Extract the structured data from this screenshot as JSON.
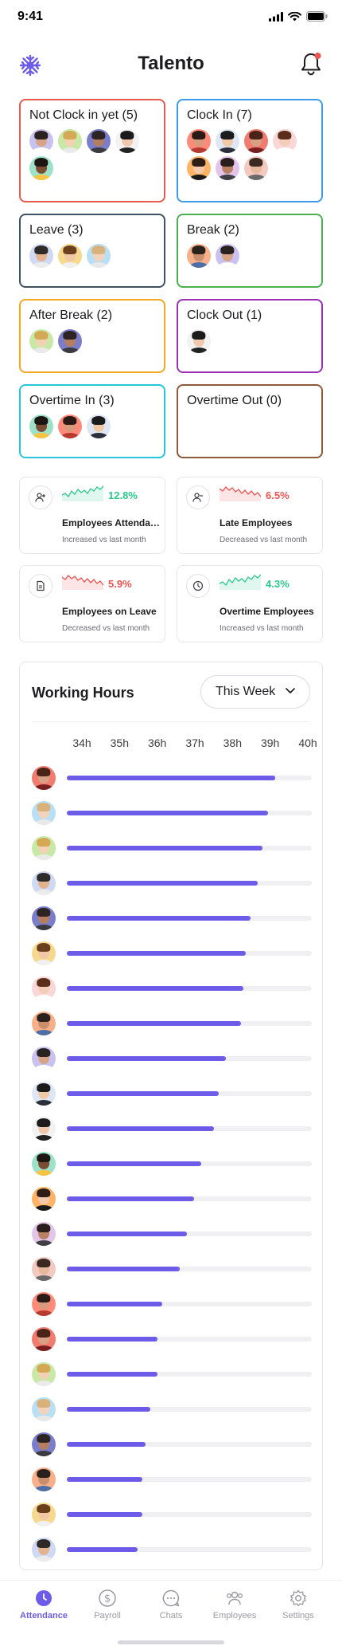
{
  "status_bar": {
    "time": "9:41"
  },
  "header": {
    "title": "Talento"
  },
  "colors": {
    "accent": "#6c5ce7",
    "up": "#2ac98a",
    "down": "#ef5350",
    "not_clock_in": "#e85a4f",
    "clock_in": "#3d9be9",
    "leave": "#3e5266",
    "break": "#4caf50",
    "after_break": "#f5a623",
    "clock_out": "#9b30b5",
    "overtime_in": "#26c6da",
    "overtime_out": "#8d5a3c"
  },
  "status_cards": [
    {
      "title": "Not Clock in yet (5)",
      "color": "#e85a4f",
      "avatars": [
        5,
        6,
        7,
        8,
        9
      ]
    },
    {
      "title": "Clock In (7)",
      "color": "#3d9be9",
      "avatars": [
        10,
        11,
        12,
        13,
        14,
        15,
        16
      ]
    },
    {
      "title": "Leave (3)",
      "color": "#3e5266",
      "avatars": [
        1,
        2,
        3
      ]
    },
    {
      "title": "Break (2)",
      "color": "#4caf50",
      "avatars": [
        4,
        5
      ]
    },
    {
      "title": "After Break (2)",
      "color": "#f5a623",
      "avatars": [
        6,
        7
      ]
    },
    {
      "title": "Clock Out (1)",
      "color": "#9b30b5",
      "avatars": [
        8
      ]
    },
    {
      "title": "Overtime In (3)",
      "color": "#26c6da",
      "avatars": [
        9,
        10,
        11
      ]
    },
    {
      "title": "Overtime Out (0)",
      "color": "#8d5a3c",
      "avatars": []
    }
  ],
  "stats": [
    {
      "icon": "user-plus-icon",
      "percent": "12.8%",
      "trend": "up",
      "label": "Employees Attendance",
      "sub": "Increased vs last month"
    },
    {
      "icon": "user-minus-icon",
      "percent": "6.5%",
      "trend": "down",
      "label": "Late Employees",
      "sub": "Decreased vs last month"
    },
    {
      "icon": "document-icon",
      "percent": "5.9%",
      "trend": "down",
      "label": "Employees on Leave",
      "sub": "Decreased vs last month"
    },
    {
      "icon": "clock-icon",
      "percent": "4.3%",
      "trend": "up",
      "label": "Overtime Employees",
      "sub": "Increased vs last month"
    }
  ],
  "working_hours": {
    "title": "Working Hours",
    "period": "This Week",
    "ticks": [
      "34h",
      "35h",
      "36h",
      "37h",
      "38h",
      "39h",
      "40h"
    ],
    "progress": [
      0.85,
      0.82,
      0.8,
      0.78,
      0.75,
      0.73,
      0.72,
      0.71,
      0.65,
      0.62,
      0.6,
      0.55,
      0.52,
      0.49,
      0.46,
      0.39,
      0.37,
      0.37,
      0.34,
      0.32,
      0.31,
      0.31,
      0.29
    ],
    "avatars": [
      12,
      3,
      6,
      1,
      7,
      2,
      13,
      4,
      5,
      11,
      8,
      9,
      14,
      15,
      0,
      10,
      12,
      6,
      3,
      7,
      4,
      2,
      1
    ]
  },
  "avatar_palette": [
    {
      "bg": "#f3c9c2",
      "skin": "#e8b89a",
      "hair": "#3a2a22",
      "shirt": "#6a6a6a"
    },
    {
      "bg": "#cfd9f2",
      "skin": "#e3b38f",
      "hair": "#2e2a28",
      "shirt": "#ececec"
    },
    {
      "bg": "#f6d98e",
      "skin": "#f0c8a6",
      "hair": "#6b3e1e",
      "shirt": "#f0f0f0"
    },
    {
      "bg": "#b9dff5",
      "skin": "#f2d3bd",
      "hair": "#d8b27a",
      "shirt": "#e8e8e8"
    },
    {
      "bg": "#f7b08a",
      "skin": "#c98f6c",
      "hair": "#2a201c",
      "shirt": "#4d6fa8"
    },
    {
      "bg": "#c9c2f0",
      "skin": "#d7a487",
      "hair": "#2a2220",
      "shirt": "#ffffff"
    },
    {
      "bg": "#c7e9a5",
      "skin": "#f1d2b4",
      "hair": "#d4a855",
      "shirt": "#eaeaea"
    },
    {
      "bg": "#7a7dc9",
      "skin": "#b57e60",
      "hair": "#2c2322",
      "shirt": "#3a3a40"
    },
    {
      "bg": "#f2f2f2",
      "skin": "#efc8ae",
      "hair": "#1c1a1a",
      "shirt": "#222"
    },
    {
      "bg": "#9de2c8",
      "skin": "#7a4c34",
      "hair": "#1e1612",
      "shirt": "#f6c343"
    },
    {
      "bg": "#ff8a7a",
      "skin": "#d79a7d",
      "hair": "#2b1a16",
      "shirt": "#b73a30"
    },
    {
      "bg": "#dfe7f5",
      "skin": "#f0c9a8",
      "hair": "#1c1c1c",
      "shirt": "#2a2f3a"
    },
    {
      "bg": "#f27b6f",
      "skin": "#d9a184",
      "hair": "#4a2318",
      "shirt": "#7a1f1f"
    },
    {
      "bg": "#f9d7d7",
      "skin": "#f3cdb8",
      "hair": "#5a2e1a",
      "shirt": "#ffffff"
    },
    {
      "bg": "#ffb366",
      "skin": "#f2c9aa",
      "hair": "#2e1d16",
      "shirt": "#1a1a1a"
    },
    {
      "bg": "#e3c5e9",
      "skin": "#b98065",
      "hair": "#2a1e1a",
      "shirt": "#3f3f45"
    }
  ],
  "bottom_nav": [
    {
      "label": "Attendance",
      "icon": "clock-filled-icon",
      "active": true
    },
    {
      "label": "Payroll",
      "icon": "dollar-icon",
      "active": false
    },
    {
      "label": "Chats",
      "icon": "chat-icon",
      "active": false
    },
    {
      "label": "Employees",
      "icon": "people-icon",
      "active": false
    },
    {
      "label": "Settings",
      "icon": "gear-icon",
      "active": false
    }
  ]
}
